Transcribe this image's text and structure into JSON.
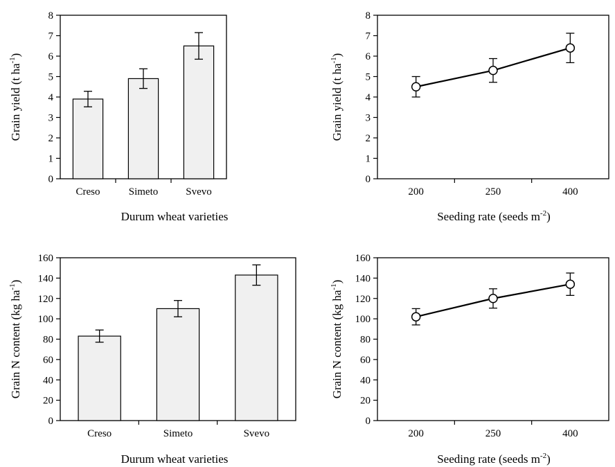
{
  "colors": {
    "bar_fill": "#f0f0f0",
    "stroke": "#000000",
    "marker_fill": "#ffffff"
  },
  "chart_data": [
    {
      "type": "bar",
      "categories": [
        "Creso",
        "Simeto",
        "Svevo"
      ],
      "values": [
        3.9,
        4.9,
        6.5
      ],
      "errors": [
        0.38,
        0.48,
        0.65
      ],
      "ylim": [
        0,
        8
      ],
      "yticks": [
        "0",
        "1",
        "2",
        "3",
        "4",
        "5",
        "6",
        "7",
        "8"
      ],
      "xlabel": "Durum wheat varieties",
      "ylabel": {
        "main": "Grain yield (t ha",
        "sup": "-1",
        "close": ")"
      },
      "grid": false
    },
    {
      "type": "line",
      "categories": [
        "200",
        "250",
        "400"
      ],
      "values": [
        4.5,
        5.3,
        6.4
      ],
      "errors": [
        0.5,
        0.58,
        0.72
      ],
      "ylim": [
        0,
        8
      ],
      "yticks": [
        "0",
        "1",
        "2",
        "3",
        "4",
        "5",
        "6",
        "7",
        "8"
      ],
      "xlabel": {
        "main": "Seeding rate (seeds m",
        "sup": "-2",
        "close": ")"
      },
      "ylabel": {
        "main": "Grain yield (t ha",
        "sup": "-1",
        "close": ")"
      },
      "grid": false
    },
    {
      "type": "bar",
      "categories": [
        "Creso",
        "Simeto",
        "Svevo"
      ],
      "values": [
        83,
        110,
        143
      ],
      "errors": [
        6,
        8,
        10
      ],
      "ylim": [
        0,
        160
      ],
      "yticks": [
        "0",
        "20",
        "40",
        "60",
        "80",
        "100",
        "120",
        "140",
        "160"
      ],
      "xlabel": "Durum wheat varieties",
      "ylabel": {
        "main": "Grain N content (kg ha",
        "sup": "-1",
        "close": ")"
      },
      "grid": false
    },
    {
      "type": "line",
      "categories": [
        "200",
        "250",
        "400"
      ],
      "values": [
        102,
        120,
        134
      ],
      "errors": [
        8,
        9.5,
        11
      ],
      "ylim": [
        0,
        160
      ],
      "yticks": [
        "0",
        "20",
        "40",
        "60",
        "80",
        "100",
        "120",
        "140",
        "160"
      ],
      "xlabel": {
        "main": "Seeding rate (seeds m",
        "sup": "-2",
        "close": ")"
      },
      "ylabel": {
        "main": "Grain N content (kg ha",
        "sup": "-1",
        "close": ")"
      },
      "grid": false
    }
  ]
}
